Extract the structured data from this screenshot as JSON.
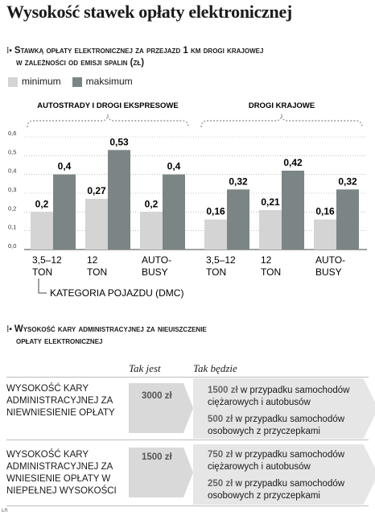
{
  "title": "Wysokość stawek opłaty elektronicznej",
  "section1": {
    "heading_line1": "Stawką opłaty elektronicznej za przejazd 1 km drogi krajowej",
    "heading_line2": "w zależności od emisji spalin (zł)",
    "bullet": "⁞•"
  },
  "legend": {
    "min_label": "minimum",
    "max_label": "maksimum"
  },
  "colors": {
    "min": "#d4d4d4",
    "max": "#7b8585",
    "text_value": "#1a1a1a"
  },
  "chart_data": {
    "type": "bar",
    "groups": [
      {
        "label": "AUTOSTRADY I DROGI EKSPRESOWE",
        "categories": [
          [
            "3,5–12",
            "TON"
          ],
          [
            "12",
            "TON"
          ],
          [
            "AUTO-",
            "BUSY"
          ]
        ],
        "min": [
          0.2,
          0.27,
          0.2
        ],
        "max": [
          0.4,
          0.53,
          0.4
        ],
        "min_labels": [
          "0,2",
          "0,27",
          "0,2"
        ],
        "max_labels": [
          "0,4",
          "0,53",
          "0,4"
        ]
      },
      {
        "label": "DROGI KRAJOWE",
        "categories": [
          [
            "3,5–12",
            "TON"
          ],
          [
            "12",
            "TON"
          ],
          [
            "AUTO-",
            "BUSY"
          ]
        ],
        "min": [
          0.16,
          0.21,
          0.16
        ],
        "max": [
          0.32,
          0.42,
          0.32
        ],
        "min_labels": [
          "0,16",
          "0,21",
          "0,16"
        ],
        "max_labels": [
          "0,32",
          "0,42",
          "0,32"
        ]
      }
    ],
    "series": [
      {
        "name": "minimum"
      },
      {
        "name": "maksimum"
      }
    ],
    "ylim": [
      0,
      0.6
    ],
    "yticks": [
      "0,0",
      "0,1",
      "0,2",
      "0,3",
      "0,4",
      "0,5",
      "0,6"
    ],
    "xlabel": "KATEGORIA POJAZDU (DMC)"
  },
  "section2": {
    "heading_line1": "Wysokość kary administracyjnej za nieuiszczenie",
    "heading_line2": "opłaty elektronicznej",
    "col_now": "Tak jest",
    "col_future": "Tak będzie",
    "rows": [
      {
        "label": "WYSOKOŚĆ KARY ADMINISTRACYJNEJ ZA NIEWNIESIENIE OPŁATY",
        "now": "3000 zł",
        "fut1_amount": "1500 zł",
        "fut1_text": " w przypadku samochodów ciężarowych i autobusów",
        "fut2_amount": "500 zł",
        "fut2_text": " w przypadku samochodów osobowych z przyczepkami"
      },
      {
        "label": "WYSOKOŚĆ KARY ADMINISTRACYJNEJ ZA WNIESIENIE OPŁATY W NIEPEŁNEJ WYSOKOŚCI",
        "now": "1500 zł",
        "fut1_amount": "750 zł",
        "fut1_text": " w przypadku samochodów ciężarowych i autobusów",
        "fut2_amount": "250 zł",
        "fut2_text": " w przypadku samochodów osobowych z przyczepkami"
      }
    ]
  },
  "source": "ŁR"
}
